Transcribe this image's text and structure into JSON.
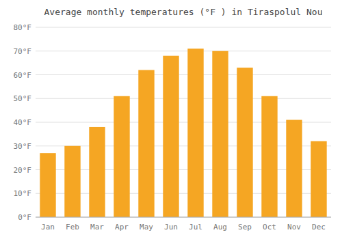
{
  "chart_data": {
    "type": "bar",
    "title": "Average monthly temperatures (°F ) in Tiraspolul Nou",
    "categories": [
      "Jan",
      "Feb",
      "Mar",
      "Apr",
      "May",
      "Jun",
      "Jul",
      "Aug",
      "Sep",
      "Oct",
      "Nov",
      "Dec"
    ],
    "values": [
      27,
      30,
      38,
      51,
      62,
      68,
      71,
      70,
      63,
      51,
      41,
      32
    ],
    "color": "#F5A623",
    "ylim": [
      0,
      80
    ],
    "yticks": [
      {
        "value": 0,
        "label": "0°F"
      },
      {
        "value": 10,
        "label": "10°F"
      },
      {
        "value": 20,
        "label": "20°F"
      },
      {
        "value": 30,
        "label": "30°F"
      },
      {
        "value": 40,
        "label": "40°F"
      },
      {
        "value": 50,
        "label": "50°F"
      },
      {
        "value": 60,
        "label": "60°F"
      },
      {
        "value": 70,
        "label": "70°F"
      },
      {
        "value": 80,
        "label": "80°F"
      }
    ],
    "grid": true
  }
}
